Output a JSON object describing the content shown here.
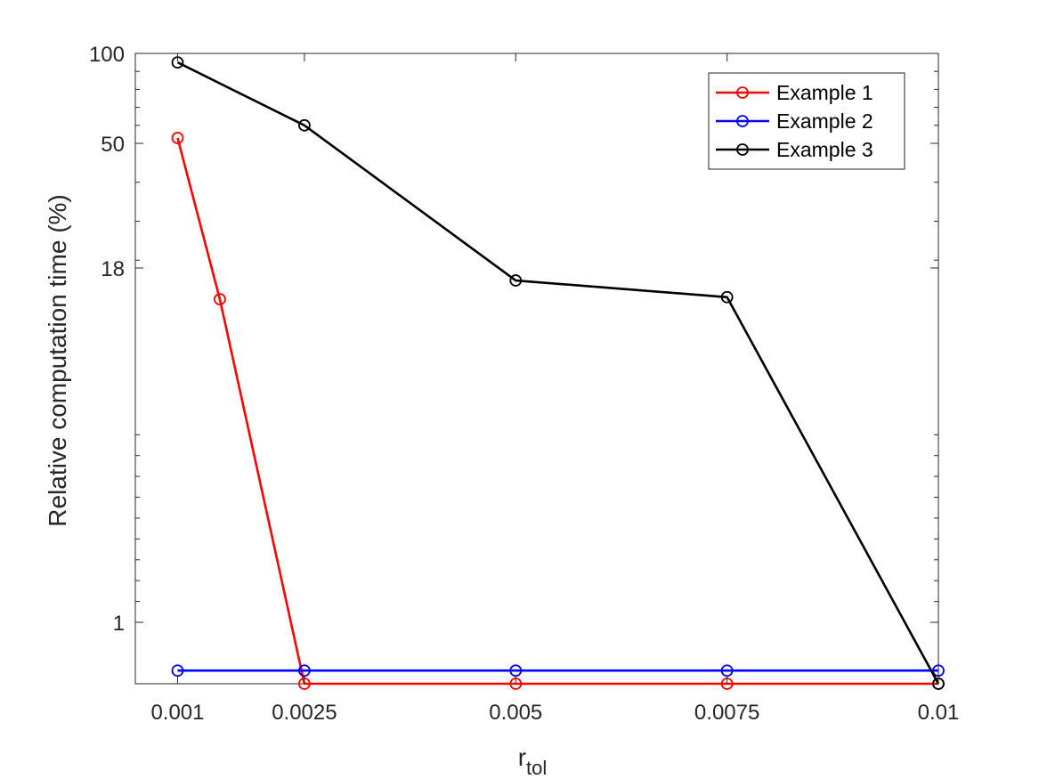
{
  "chart_data": {
    "type": "line",
    "title": "",
    "xlabel": "r",
    "xlabel_subscript": "tol",
    "ylabel": "Relative computation time (%)",
    "xlim": [
      0,
      0.01
    ],
    "ylim": [
      0,
      100
    ],
    "x_ticks": [
      0.001,
      0.0025,
      0.005,
      0.0075,
      0.01
    ],
    "x_tick_labels": [
      "0.001",
      "0.0025",
      "0.005",
      "0.0075",
      "0.01"
    ],
    "y_ticks": [
      1,
      18,
      50,
      100
    ],
    "y_tick_labels": [
      "1",
      "18",
      "50",
      "100"
    ],
    "grid": false,
    "box": true,
    "legend_position": "top-right",
    "series": [
      {
        "name": "Example 1",
        "color": "#ff0000",
        "marker": "circle",
        "x": [
          0.001,
          0.0015,
          0.0025,
          0.005,
          0.0075,
          0.01
        ],
        "y": [
          53,
          16.5,
          0.3,
          0.3,
          0.3,
          0.3
        ]
      },
      {
        "name": "Example 2",
        "color": "#0000ff",
        "marker": "circle",
        "x": [
          0.001,
          0.0025,
          0.005,
          0.0075,
          0.01
        ],
        "y": [
          0.45,
          0.45,
          0.45,
          0.45,
          0.45
        ]
      },
      {
        "name": "Example 3",
        "color": "#000000",
        "marker": "circle",
        "x": [
          0.001,
          0.0025,
          0.005,
          0.0075,
          0.01
        ],
        "y": [
          95,
          60,
          17.4,
          16.6,
          0.3
        ]
      }
    ]
  }
}
